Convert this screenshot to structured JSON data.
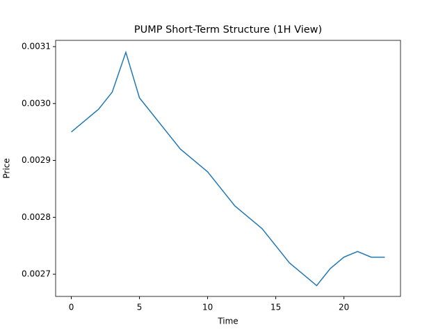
{
  "chart_data": {
    "type": "line",
    "title": "PUMP Short-Term Structure (1H View)",
    "x_label": "Time",
    "y_label": "Price",
    "x": [
      0,
      1,
      2,
      3,
      4,
      5,
      6,
      7,
      8,
      9,
      10,
      11,
      12,
      13,
      14,
      15,
      16,
      17,
      18,
      19,
      20,
      21,
      22,
      23
    ],
    "series": [
      {
        "name": "PUMP",
        "color": "#1f77b4",
        "values": [
          0.00295,
          0.00297,
          0.00299,
          0.00302,
          0.00309,
          0.00301,
          0.00298,
          0.00295,
          0.00292,
          0.0029,
          0.00288,
          0.00285,
          0.00282,
          0.0028,
          0.00278,
          0.00275,
          0.00272,
          0.0027,
          0.00268,
          0.00271,
          0.00273,
          0.00274,
          0.00273,
          0.00273
        ]
      }
    ],
    "xlim": [
      -1.15,
      24.15
    ],
    "xticks": [
      0,
      5,
      10,
      15,
      20
    ],
    "ylim": [
      0.002661,
      0.003111
    ],
    "yticks": [
      0.0027,
      0.0028,
      0.0029,
      {
        "value": 0.003,
        "label": "0.0030"
      },
      0.0031
    ],
    "grid": false
  }
}
